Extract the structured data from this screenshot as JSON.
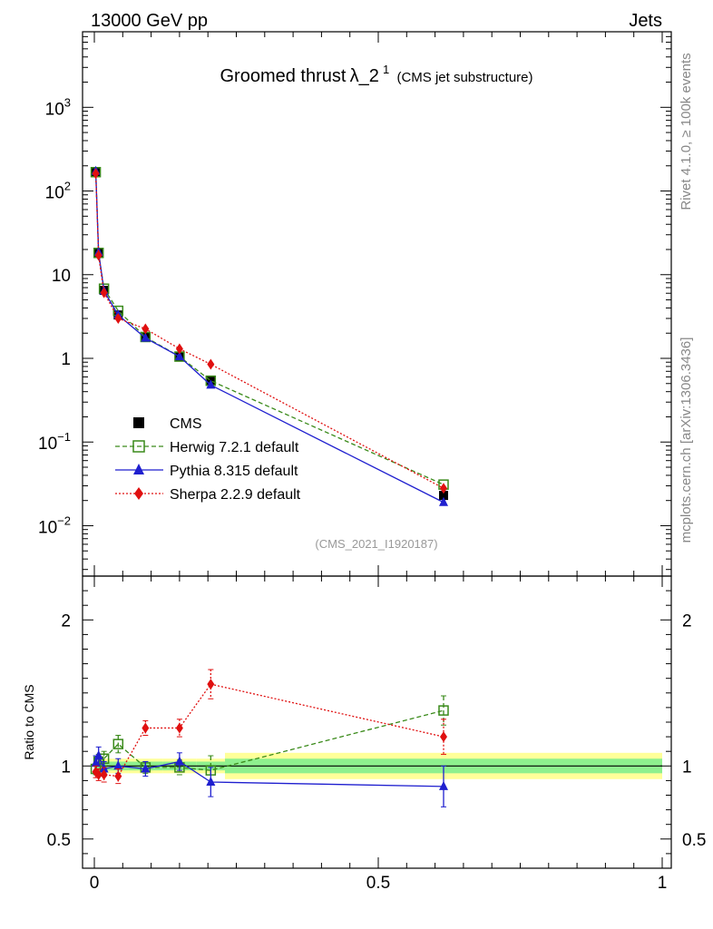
{
  "header": {
    "left": "13000 GeV pp",
    "right": "Jets"
  },
  "side": {
    "top": "Rivet 4.1.0, ≥ 100k events",
    "bottom": "mcplots.cern.ch [arXiv:1306.3436]"
  },
  "chart_data": {
    "type": "line",
    "title_main": "Groomed thrust",
    "title_lambda": "λ_2",
    "title_sup": "1",
    "title_sub": "(CMS jet substructure)",
    "watermark": "(CMS_2021_I1920187)",
    "xlim": [
      0,
      1
    ],
    "ylim_log": [
      0.0025,
      8000
    ],
    "ratio_ylim": [
      0.3,
      2.3
    ],
    "ratio_ylabel": "Ratio to CMS",
    "xticks": [
      "0",
      "0.5",
      "1"
    ],
    "ratio_yticks": [
      "0.5",
      "1",
      "2"
    ],
    "x": [
      0.0025,
      0.0075,
      0.017,
      0.042,
      0.09,
      0.15,
      0.205,
      0.615
    ],
    "bin_edges": [
      0,
      0.005,
      0.01,
      0.025,
      0.06,
      0.12,
      0.18,
      0.23,
      1.0
    ],
    "series": [
      {
        "name": "CMS",
        "color": "#000000",
        "marker": "square-filled",
        "values": [
          170,
          18,
          6.5,
          3.3,
          1.8,
          1.05,
          0.55,
          0.023
        ],
        "ratio": [
          1,
          1,
          1,
          1,
          1,
          1,
          1,
          1
        ]
      },
      {
        "name": "Herwig 7.2.1 default",
        "color": "#3a8a1a",
        "marker": "square-open",
        "linestyle": "dashed",
        "values": [
          168,
          18.2,
          6.8,
          3.7,
          1.8,
          1.05,
          0.54,
          0.031
        ],
        "ratio": [
          0.98,
          1.03,
          1.05,
          1.15,
          0.99,
          0.99,
          0.97,
          1.38
        ],
        "ratio_err": [
          0.04,
          0.05,
          0.05,
          0.06,
          0.04,
          0.05,
          0.1,
          0.1
        ]
      },
      {
        "name": "Pythia 8.315 default",
        "color": "#1f1fcf",
        "marker": "triangle",
        "linestyle": "solid",
        "values": [
          172,
          18.5,
          6.4,
          3.3,
          1.75,
          1.05,
          0.48,
          0.019
        ],
        "ratio": [
          1.02,
          1.07,
          0.98,
          1.0,
          0.98,
          1.03,
          0.89,
          0.86
        ],
        "ratio_err": [
          0.05,
          0.06,
          0.05,
          0.05,
          0.05,
          0.06,
          0.1,
          0.14
        ]
      },
      {
        "name": "Sherpa 2.2.9 default",
        "color": "#e01010",
        "marker": "diamond",
        "linestyle": "dotted",
        "values": [
          162,
          17,
          6.1,
          3.0,
          2.25,
          1.3,
          0.85,
          0.028
        ],
        "ratio": [
          0.96,
          0.94,
          0.94,
          0.93,
          1.26,
          1.26,
          1.56,
          1.2
        ],
        "ratio_err": [
          0.04,
          0.04,
          0.05,
          0.05,
          0.05,
          0.06,
          0.1,
          0.12
        ]
      }
    ],
    "band_inner": [
      0.02,
      0.03,
      0.03,
      0.03,
      0.03,
      0.03,
      0.03,
      0.05
    ],
    "band_outer": [
      0.04,
      0.05,
      0.05,
      0.05,
      0.05,
      0.05,
      0.05,
      0.09
    ]
  }
}
